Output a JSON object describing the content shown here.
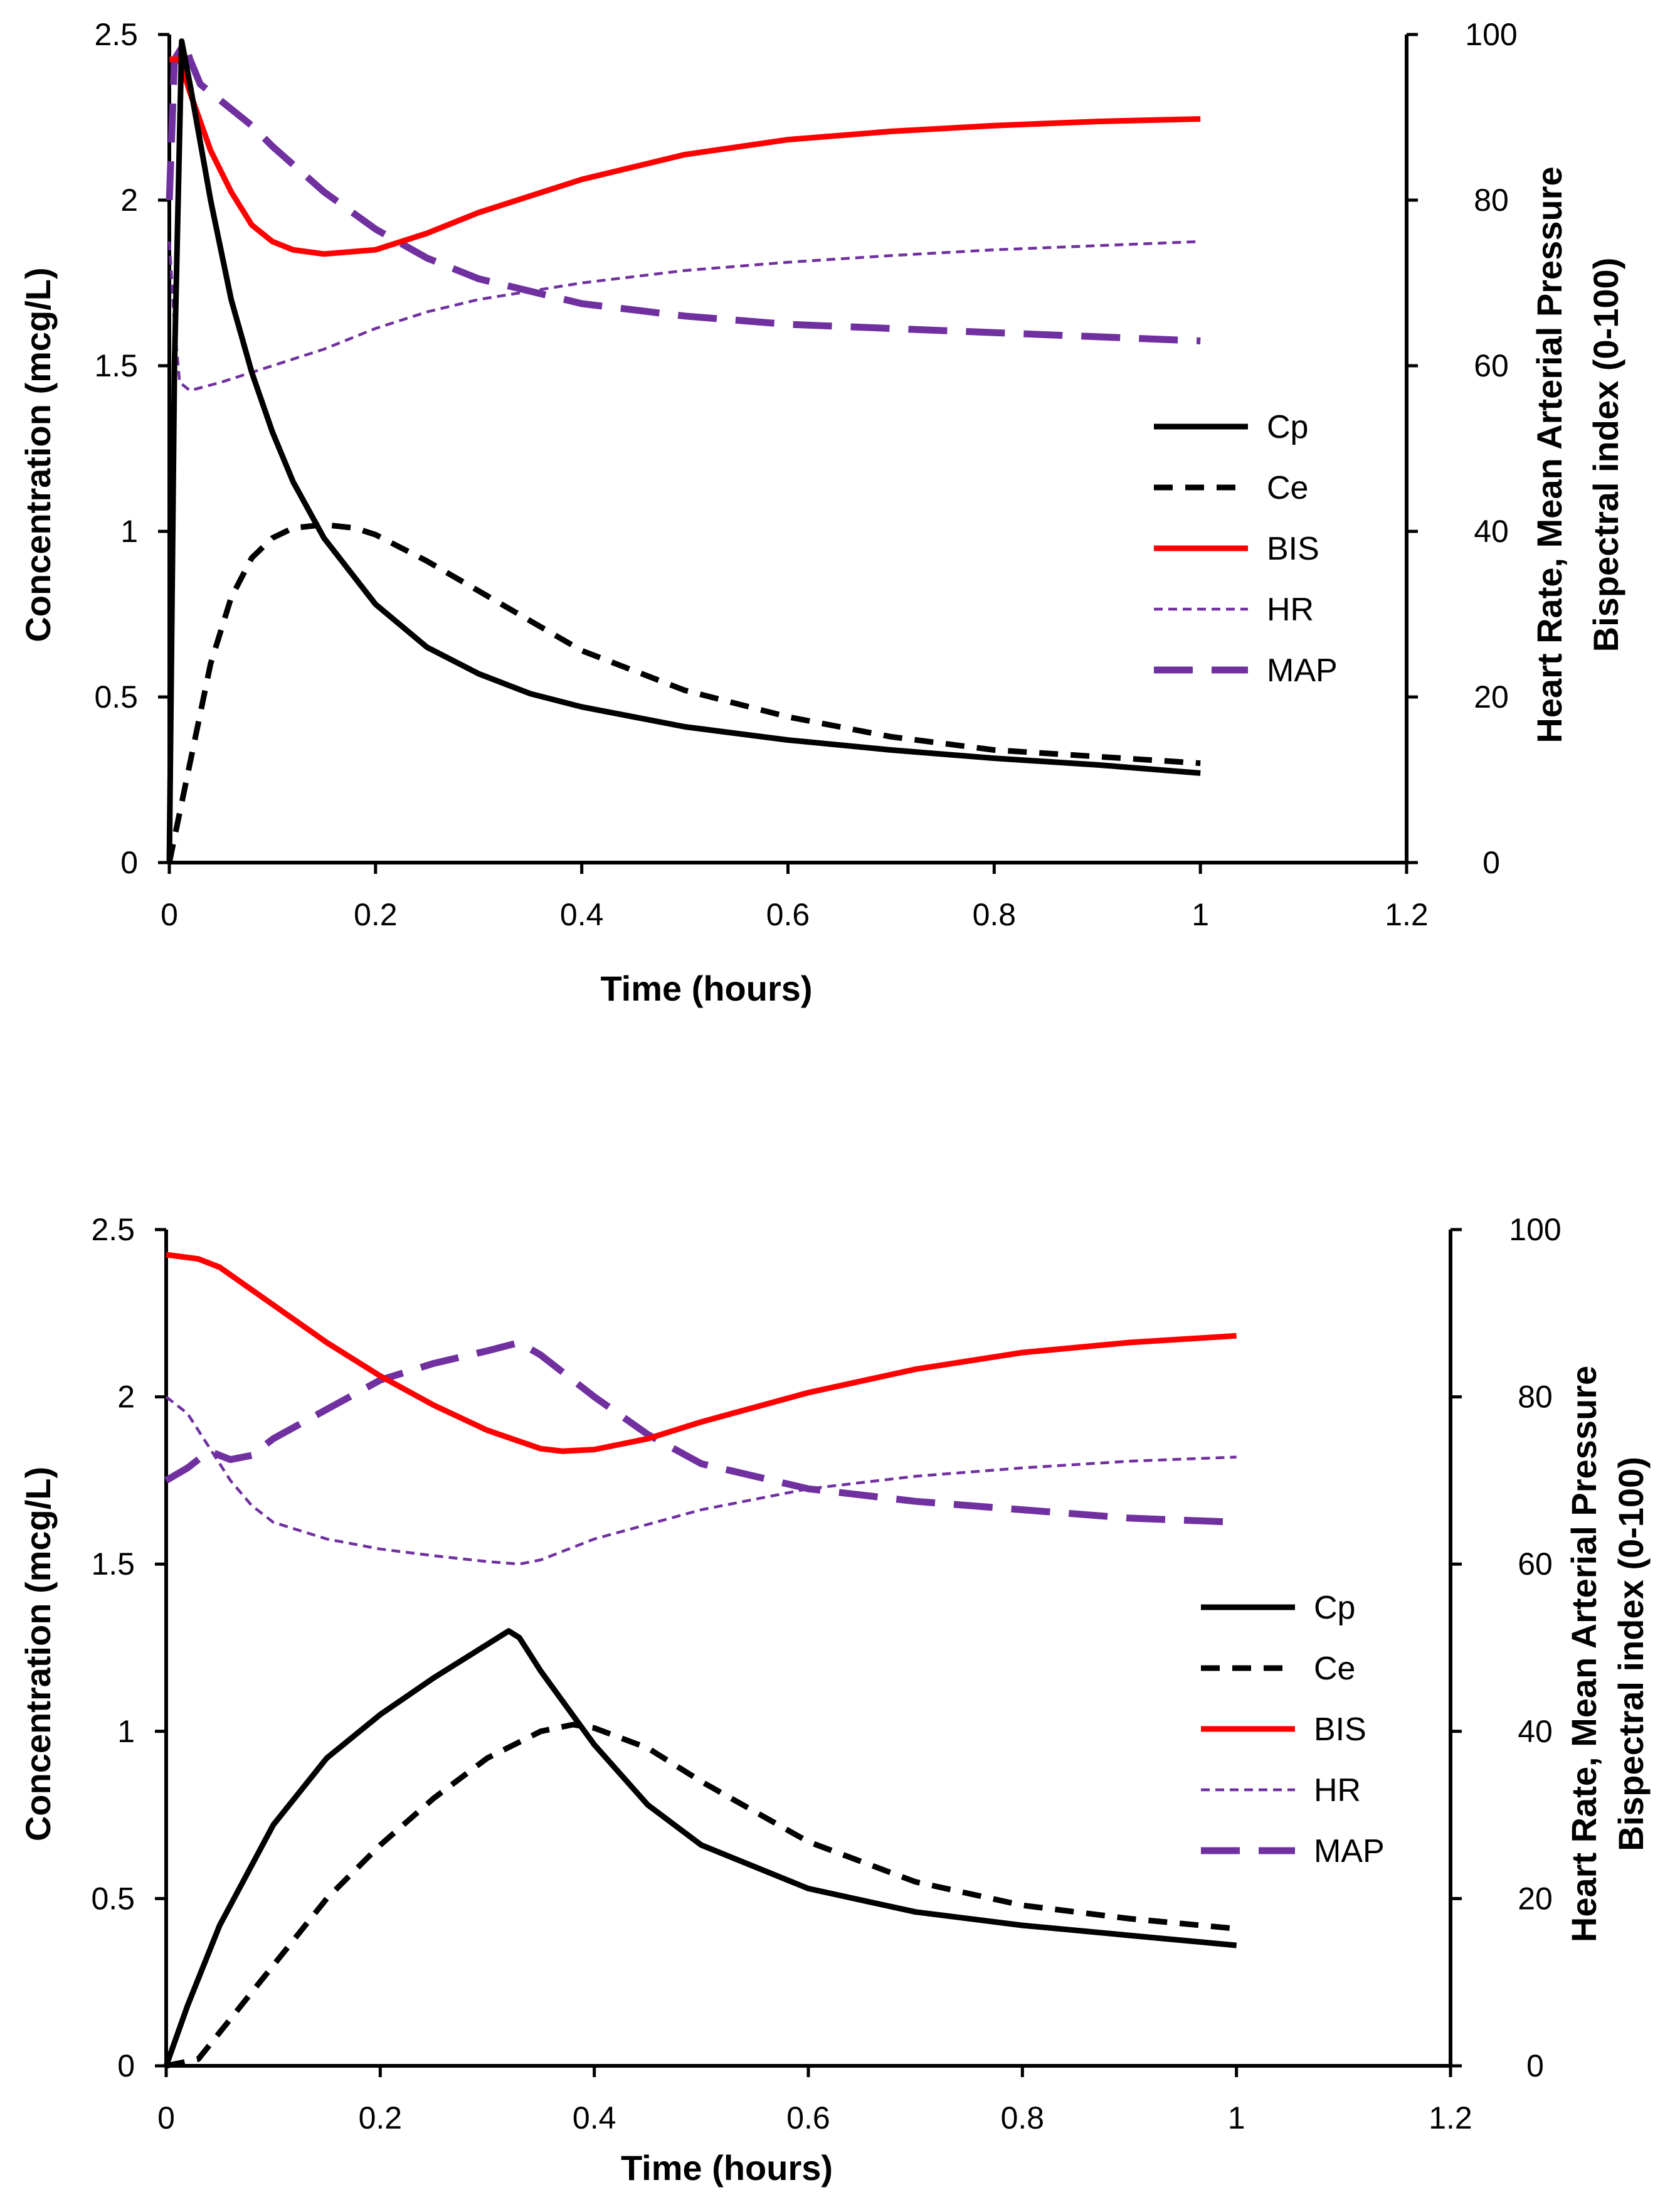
{
  "chart_data": [
    {
      "type": "line",
      "panel": "top",
      "xlabel": "Time (hours)",
      "ylabel": "Concentration (mcg/L)",
      "y2label_line1": "Heart Rate,  Mean Arterial Pressure",
      "y2label_line2": "Bispectral index (0-100)",
      "xlim": [
        0,
        1.2
      ],
      "ylim": [
        0,
        2.5
      ],
      "y2lim": [
        0,
        100
      ],
      "xticks": [
        "0",
        "0.2",
        "0.4",
        "0.6",
        "0.8",
        "1",
        "1.2"
      ],
      "yticks": [
        "0",
        "0.5",
        "1",
        "1.5",
        "2",
        "2.5"
      ],
      "y2ticks": [
        "0",
        "20",
        "40",
        "60",
        "80",
        "100"
      ],
      "grid": false,
      "legend_position": "right",
      "series": [
        {
          "name": "Cp",
          "axis": "left",
          "color": "#000000",
          "style": "solid-thick",
          "x": [
            0,
            0.005,
            0.012,
            0.02,
            0.04,
            0.06,
            0.08,
            0.1,
            0.12,
            0.15,
            0.2,
            0.25,
            0.3,
            0.35,
            0.4,
            0.5,
            0.6,
            0.7,
            0.8,
            0.9,
            1.0
          ],
          "y": [
            0,
            1.5,
            2.48,
            2.35,
            2.0,
            1.7,
            1.48,
            1.3,
            1.15,
            0.98,
            0.78,
            0.65,
            0.57,
            0.51,
            0.47,
            0.41,
            0.37,
            0.34,
            0.315,
            0.295,
            0.27
          ]
        },
        {
          "name": "Ce",
          "axis": "left",
          "color": "#000000",
          "style": "dashed-thick",
          "x": [
            0,
            0.02,
            0.04,
            0.06,
            0.08,
            0.1,
            0.12,
            0.15,
            0.18,
            0.2,
            0.25,
            0.3,
            0.35,
            0.4,
            0.5,
            0.6,
            0.7,
            0.8,
            0.9,
            1.0
          ],
          "y": [
            0,
            0.3,
            0.6,
            0.8,
            0.92,
            0.98,
            1.01,
            1.02,
            1.01,
            0.99,
            0.91,
            0.82,
            0.73,
            0.64,
            0.52,
            0.44,
            0.38,
            0.34,
            0.32,
            0.3
          ]
        },
        {
          "name": "BIS",
          "axis": "right",
          "color": "#ff0000",
          "style": "solid-thick",
          "x": [
            0,
            0.01,
            0.02,
            0.04,
            0.06,
            0.08,
            0.1,
            0.12,
            0.15,
            0.2,
            0.25,
            0.3,
            0.35,
            0.4,
            0.5,
            0.6,
            0.7,
            0.8,
            0.9,
            1.0
          ],
          "y": [
            97,
            97,
            93,
            86,
            81,
            77,
            75,
            74,
            73.5,
            74,
            76,
            78.5,
            80.5,
            82.5,
            85.5,
            87.3,
            88.3,
            89,
            89.5,
            89.8
          ]
        },
        {
          "name": "HR",
          "axis": "right",
          "color": "#7030a0",
          "style": "short-dash-thin",
          "x": [
            0,
            0.005,
            0.01,
            0.02,
            0.05,
            0.1,
            0.15,
            0.2,
            0.25,
            0.3,
            0.35,
            0.4,
            0.5,
            0.6,
            0.7,
            0.8,
            0.9,
            1.0
          ],
          "y": [
            75,
            65,
            58,
            57,
            58,
            60,
            62,
            64.5,
            66.5,
            68,
            69,
            70,
            71.5,
            72.5,
            73.3,
            74,
            74.5,
            75
          ]
        },
        {
          "name": "MAP",
          "axis": "right",
          "color": "#7030a0",
          "style": "long-dash-thick",
          "x": [
            0,
            0.005,
            0.01,
            0.015,
            0.02,
            0.03,
            0.05,
            0.08,
            0.1,
            0.15,
            0.2,
            0.25,
            0.3,
            0.35,
            0.4,
            0.5,
            0.6,
            0.7,
            0.8,
            0.9,
            1.0
          ],
          "y": [
            80,
            97,
            98,
            99,
            97,
            94,
            92,
            89,
            86.5,
            81,
            76.5,
            73,
            70.5,
            69,
            67.5,
            66,
            65,
            64.5,
            64,
            63.5,
            63
          ]
        }
      ]
    },
    {
      "type": "line",
      "panel": "bottom",
      "xlabel": "Time (hours)",
      "ylabel": "Concentration (mcg/L)",
      "y2label_line1": "Heart Rate,  Mean Arterial Pressure",
      "y2label_line2": "Bispectral index (0-100)",
      "xlim": [
        0,
        1.2
      ],
      "ylim": [
        0,
        2.5
      ],
      "y2lim": [
        0,
        100
      ],
      "xticks": [
        "0",
        "0.2",
        "0.4",
        "0.6",
        "0.8",
        "1",
        "1.2"
      ],
      "yticks": [
        "0",
        "0.5",
        "1",
        "1.5",
        "2",
        "2.5"
      ],
      "y2ticks": [
        "0",
        "20",
        "40",
        "60",
        "80",
        "100"
      ],
      "grid": false,
      "legend_position": "right",
      "series": [
        {
          "name": "Cp",
          "axis": "left",
          "color": "#000000",
          "style": "solid-thick",
          "x": [
            0,
            0.02,
            0.05,
            0.1,
            0.15,
            0.2,
            0.25,
            0.3,
            0.32,
            0.33,
            0.35,
            0.4,
            0.45,
            0.5,
            0.6,
            0.7,
            0.8,
            0.9,
            1.0
          ],
          "y": [
            0,
            0.18,
            0.42,
            0.72,
            0.92,
            1.05,
            1.16,
            1.26,
            1.3,
            1.28,
            1.18,
            0.96,
            0.78,
            0.66,
            0.53,
            0.46,
            0.42,
            0.39,
            0.36
          ]
        },
        {
          "name": "Ce",
          "axis": "left",
          "color": "#000000",
          "style": "dashed-thick",
          "x": [
            0,
            0.03,
            0.05,
            0.1,
            0.15,
            0.2,
            0.25,
            0.3,
            0.35,
            0.38,
            0.4,
            0.45,
            0.5,
            0.6,
            0.7,
            0.8,
            0.9,
            1.0
          ],
          "y": [
            0,
            0.02,
            0.1,
            0.3,
            0.5,
            0.66,
            0.8,
            0.92,
            1.0,
            1.02,
            1.01,
            0.95,
            0.85,
            0.67,
            0.55,
            0.48,
            0.44,
            0.41
          ]
        },
        {
          "name": "BIS",
          "axis": "right",
          "color": "#ff0000",
          "style": "solid-thick",
          "x": [
            0,
            0.03,
            0.05,
            0.1,
            0.15,
            0.2,
            0.25,
            0.3,
            0.35,
            0.37,
            0.4,
            0.45,
            0.5,
            0.6,
            0.7,
            0.8,
            0.9,
            1.0
          ],
          "y": [
            97,
            96.5,
            95.5,
            91,
            86.5,
            82.5,
            79,
            76,
            73.8,
            73.5,
            73.7,
            75,
            77,
            80.5,
            83.3,
            85.3,
            86.5,
            87.3
          ]
        },
        {
          "name": "HR",
          "axis": "right",
          "color": "#7030a0",
          "style": "short-dash-thin",
          "x": [
            0,
            0.02,
            0.04,
            0.06,
            0.08,
            0.1,
            0.15,
            0.2,
            0.25,
            0.3,
            0.33,
            0.35,
            0.4,
            0.5,
            0.6,
            0.7,
            0.8,
            0.9,
            1.0
          ],
          "y": [
            80,
            78,
            74,
            70,
            67,
            65,
            63,
            61.8,
            61,
            60.3,
            60,
            60.5,
            63,
            66.5,
            69,
            70.5,
            71.5,
            72.3,
            72.8
          ]
        },
        {
          "name": "MAP",
          "axis": "right",
          "color": "#7030a0",
          "style": "long-dash-thick",
          "x": [
            0,
            0.02,
            0.04,
            0.06,
            0.08,
            0.1,
            0.15,
            0.2,
            0.25,
            0.3,
            0.33,
            0.35,
            0.4,
            0.45,
            0.5,
            0.6,
            0.7,
            0.8,
            0.9,
            1.0
          ],
          "y": [
            70,
            71.5,
            73.5,
            72.5,
            73,
            75,
            78.5,
            82,
            84,
            85.5,
            86.5,
            85,
            80,
            75.5,
            72,
            69,
            67.5,
            66.5,
            65.5,
            65
          ]
        }
      ]
    }
  ]
}
